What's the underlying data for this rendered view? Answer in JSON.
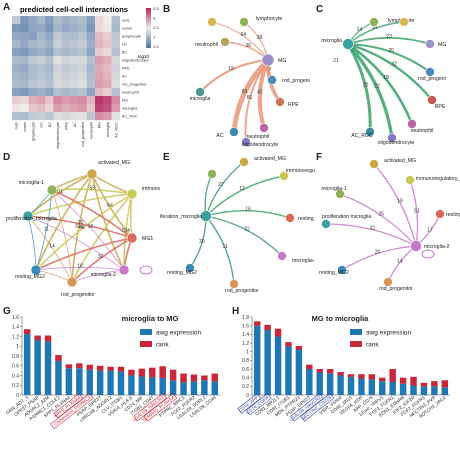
{
  "panels": {
    "A": {
      "letter": "A",
      "title": "predicted cell-cell interactions",
      "legend_label": "log10",
      "legend_ticks": [
        "3.5",
        "3",
        "2.5",
        "2",
        "1.5"
      ],
      "colors": {
        "low": "#4a75a8",
        "mid": "#f1ece6",
        "high": "#b3245a"
      },
      "rows": [
        "rods",
        "cones",
        "lymphocyte",
        "HC",
        "BC",
        "oligodendrocyte",
        "RPE",
        "AC",
        "rod_progenitor",
        "neutrophil",
        "MG",
        "microglia",
        "AC_RGC"
      ],
      "cols": [
        "rods",
        "cones",
        "lymphocyte",
        "HC",
        "BC",
        "oligodendrocyte",
        "RPE",
        "AC",
        "rod_progenitor",
        "neutrophil",
        "MG",
        "microglia",
        "AC_RGC"
      ],
      "values": [
        [
          0.35,
          0.15,
          0.22,
          0.28,
          0.18,
          0.3,
          0.25,
          0.28,
          0.3,
          0.18,
          0.55,
          0.5,
          0.3
        ],
        [
          0.15,
          0.12,
          0.2,
          0.22,
          0.15,
          0.28,
          0.22,
          0.25,
          0.28,
          0.15,
          0.55,
          0.48,
          0.28
        ],
        [
          0.22,
          0.2,
          0.18,
          0.28,
          0.22,
          0.35,
          0.3,
          0.3,
          0.34,
          0.22,
          0.62,
          0.58,
          0.35
        ],
        [
          0.28,
          0.22,
          0.28,
          0.3,
          0.25,
          0.38,
          0.32,
          0.34,
          0.36,
          0.25,
          0.64,
          0.6,
          0.36
        ],
        [
          0.18,
          0.15,
          0.22,
          0.25,
          0.2,
          0.32,
          0.28,
          0.3,
          0.32,
          0.2,
          0.58,
          0.55,
          0.32
        ],
        [
          0.3,
          0.28,
          0.35,
          0.38,
          0.32,
          0.45,
          0.4,
          0.42,
          0.42,
          0.32,
          0.7,
          0.66,
          0.42
        ],
        [
          0.25,
          0.22,
          0.3,
          0.32,
          0.28,
          0.4,
          0.35,
          0.38,
          0.4,
          0.28,
          0.66,
          0.62,
          0.4
        ],
        [
          0.28,
          0.25,
          0.3,
          0.34,
          0.3,
          0.42,
          0.38,
          0.4,
          0.42,
          0.3,
          0.68,
          0.64,
          0.42
        ],
        [
          0.3,
          0.28,
          0.34,
          0.36,
          0.32,
          0.42,
          0.4,
          0.42,
          0.44,
          0.32,
          0.7,
          0.66,
          0.44
        ],
        [
          0.18,
          0.15,
          0.22,
          0.25,
          0.2,
          0.32,
          0.28,
          0.3,
          0.32,
          0.2,
          0.62,
          0.58,
          0.32
        ],
        [
          0.58,
          0.55,
          0.65,
          0.68,
          0.6,
          0.75,
          0.7,
          0.72,
          0.74,
          0.64,
          0.95,
          0.9,
          0.74
        ],
        [
          0.52,
          0.5,
          0.6,
          0.62,
          0.56,
          0.7,
          0.66,
          0.68,
          0.7,
          0.6,
          0.92,
          0.88,
          0.7
        ],
        [
          0.32,
          0.3,
          0.36,
          0.38,
          0.34,
          0.44,
          0.42,
          0.44,
          0.46,
          0.34,
          0.74,
          0.7,
          0.46
        ]
      ]
    },
    "B": {
      "letter": "B",
      "edge_color": "#e8967a",
      "nodes": [
        {
          "id": "MG",
          "label": "MG",
          "color": "#9b8fc8"
        },
        {
          "id": "lymphocyte",
          "label": "lymphocyte",
          "color": "#8fb35a"
        },
        {
          "id": "neutrophil_top",
          "label": "neutrophil",
          "color": "#b8a55a"
        },
        {
          "id": "microglia",
          "label": "microglia",
          "color": "#4a9a8a"
        },
        {
          "id": "rod",
          "label": "rod_progeni",
          "color": "#4a8ab8"
        },
        {
          "id": "rpe",
          "label": "RPE",
          "color": "#c87858"
        },
        {
          "id": "neutrophil",
          "label": "neutrophil",
          "color": "#b865a8"
        },
        {
          "id": "ac",
          "label": "AC",
          "color": "#3a8aa8"
        },
        {
          "id": "oligo",
          "label": "oligodendrocyte",
          "color": "#8878c8"
        },
        {
          "id": "hc",
          "label": "",
          "color": "#d8b858"
        }
      ],
      "edge_labels": [
        "38",
        "36",
        "19",
        "29",
        "43",
        "42",
        "60",
        "81",
        "64"
      ]
    },
    "C": {
      "letter": "C",
      "edge_color": "#3aa06a",
      "nodes": [
        {
          "id": "microglia",
          "label": "microglia",
          "color": "#3aa0a0"
        },
        {
          "id": "lymphocyte",
          "label": "lymphocyte",
          "color": "#8fb35a"
        },
        {
          "id": "ac_top",
          "label": "",
          "color": "#d8b858"
        },
        {
          "id": "mg",
          "label": "MG",
          "color": "#9b8fc8"
        },
        {
          "id": "rod",
          "label": "rod_progeni",
          "color": "#4a8ab8"
        },
        {
          "id": "rpe",
          "label": "RPE",
          "color": "#c8584a"
        },
        {
          "id": "neutrophil",
          "label": "neutrophil",
          "color": "#b865a8"
        },
        {
          "id": "ac",
          "label": "AC_RGC",
          "color": "#3a8aa8"
        },
        {
          "id": "oligo",
          "label": "oligodendrocyte",
          "color": "#8878c8"
        }
      ],
      "edge_labels": [
        "14",
        "34",
        "23",
        "20",
        "32",
        "18",
        "20",
        "22",
        "21"
      ]
    },
    "D": {
      "letter": "D",
      "nodes": [
        {
          "id": "activated",
          "label": "activated_MG",
          "color": "#c8a848"
        },
        {
          "id": "immuno",
          "label": "immunoregulatory_MG",
          "color": "#c8c858"
        },
        {
          "id": "mg1",
          "label": "MG1",
          "color": "#d86858"
        },
        {
          "id": "micro2",
          "label": "microglia-2",
          "color": "#c878c8"
        },
        {
          "id": "rodprog",
          "label": "rod_progenitor",
          "color": "#d89858"
        },
        {
          "id": "resting2",
          "label": "resting_MG2",
          "color": "#3a8ab8"
        },
        {
          "id": "prolif",
          "label": "proliferation_microglia",
          "color": "#3aa0a0"
        },
        {
          "id": "micro1",
          "label": "microglia-1",
          "color": "#8fb35a"
        }
      ],
      "edge_labels": [
        "64",
        "101",
        "101",
        "104",
        "48",
        "59",
        "30",
        "20",
        "18",
        "16",
        "14",
        "11",
        "40",
        "53",
        "62"
      ]
    },
    "E": {
      "letter": "E",
      "edge_color": "#3aa06a",
      "nodes": [
        {
          "id": "activated",
          "label": "activated_MG",
          "color": "#c8a848"
        },
        {
          "id": "immuno",
          "label": "immunoregulatory_MG",
          "color": "#c8c858"
        },
        {
          "id": "resting1",
          "label": "resting_MG1",
          "color": "#d86858"
        },
        {
          "id": "micro2",
          "label": "microglia-2",
          "color": "#c878c8"
        },
        {
          "id": "rodprog",
          "label": "rod_progenitor",
          "color": "#d89858"
        },
        {
          "id": "resting2",
          "label": "resting_MG2",
          "color": "#3a8ab8"
        },
        {
          "id": "prolif",
          "label": "proliferation_microglia",
          "color": "#3aa0a0"
        },
        {
          "id": "micro1",
          "label": "",
          "color": "#8fb35a"
        }
      ],
      "edge_labels": [
        "27",
        "12",
        "16",
        "22",
        "11",
        "20"
      ]
    },
    "F": {
      "letter": "F",
      "edge_color": "#c878c8",
      "nodes": [
        {
          "id": "activated",
          "label": "activated_MG",
          "color": "#c8a848"
        },
        {
          "id": "immuno",
          "label": "immunoregulatory_MG",
          "color": "#c8c858"
        },
        {
          "id": "resting1",
          "label": "resting_MG1",
          "color": "#d86858"
        },
        {
          "id": "micro2",
          "label": "microglia-2",
          "color": "#c878c8"
        },
        {
          "id": "rodprog",
          "label": "rod_progenitor",
          "color": "#d89858"
        },
        {
          "id": "resting2",
          "label": "resting_MG2",
          "color": "#3a8ab8"
        },
        {
          "id": "prolif",
          "label": "proliferation microglia",
          "color": "#3aa0a0"
        },
        {
          "id": "micro1",
          "label": "microglia-1",
          "color": "#8fb35a"
        }
      ],
      "edge_labels": [
        "19",
        "51",
        "17",
        "14",
        "20",
        "32",
        "25",
        "16"
      ]
    },
    "G": {
      "letter": "G",
      "title": "microglia to MG",
      "legend": [
        {
          "label": "awg expression",
          "color": "#1f78b4"
        },
        {
          "label": "rank",
          "color": "#c8283a"
        }
      ],
      "yticks": [
        "0",
        "0.2",
        "0.4",
        "0.6",
        "0.8",
        "1",
        "1.2",
        "1.4",
        "1.6"
      ],
      "categories": [
        "GRN_ADT_3",
        "GPR37_PSAP",
        "ADGRL2_A2M",
        "PGRMC1_CDLE2",
        "SPP1_PLXNA4",
        "NRP2_PLXNA4",
        "Cholesterol_PGRMC1",
        "PSAP_GPR37",
        "LRRC4B_ADGRL2",
        "CLU_ITGB1",
        "VSIG4_HLA-E",
        "CD74_MIF",
        "ITGB1_CD47",
        "LGALS9_HAVCR2",
        "SEMA6D_PLXNA4",
        "PTPRC_MRC1",
        "FGF2_FGFR2",
        "LGALS9_SORL1",
        "LGALS9_CD44"
      ],
      "boxed": [
        5,
        6,
        13,
        14
      ],
      "awg": [
        1.25,
        1.12,
        1.1,
        0.7,
        0.55,
        0.55,
        0.52,
        0.5,
        0.5,
        0.48,
        0.4,
        0.38,
        0.36,
        0.35,
        0.3,
        0.26,
        0.28,
        0.3,
        0.28
      ],
      "rank": [
        0.1,
        0.1,
        0.12,
        0.12,
        0.08,
        0.1,
        0.1,
        0.1,
        0.08,
        0.1,
        0.12,
        0.16,
        0.2,
        0.24,
        0.22,
        0.18,
        0.14,
        0.1,
        0.16
      ]
    },
    "H": {
      "letter": "H",
      "title": "MG to microglia",
      "legend": [
        {
          "label": "awg expression",
          "color": "#1f78b4"
        },
        {
          "label": "rank",
          "color": "#c8283a"
        }
      ],
      "yticks": [
        "0",
        "0.2",
        "0.4",
        "0.6",
        "0.8",
        "1",
        "1.2",
        "1.4",
        "1.6",
        "1.8"
      ],
      "categories": [
        "CD74_APP",
        "CD74_COPA",
        "CD81_MPZL1",
        "CD81_ITGB1",
        "MDK_PTPRZ1",
        "PSAP_GPR37",
        "LGALS9_HAVCR2",
        "NECTIN2_CD226",
        "VSIR_VSIG4",
        "CD46_JAG1",
        "VEGFA_KDR",
        "APP_CD74",
        "12oxo_TRPV1",
        "FGF1_FGFR1",
        "EDN1_EDNRB",
        "IGF2_IGF2R",
        "FGF2_FGFR1",
        "NECTIN3_PVR",
        "NOTCH1_JAG1"
      ],
      "boxed": [
        0,
        1,
        6,
        7
      ],
      "awg": [
        1.6,
        1.5,
        1.35,
        1.12,
        1.05,
        0.6,
        0.52,
        0.5,
        0.45,
        0.42,
        0.38,
        0.36,
        0.32,
        0.3,
        0.26,
        0.22,
        0.2,
        0.2,
        0.18
      ],
      "rank": [
        0.1,
        0.12,
        0.18,
        0.1,
        0.08,
        0.1,
        0.08,
        0.1,
        0.08,
        0.06,
        0.1,
        0.12,
        0.08,
        0.3,
        0.14,
        0.2,
        0.08,
        0.12,
        0.16
      ]
    }
  }
}
